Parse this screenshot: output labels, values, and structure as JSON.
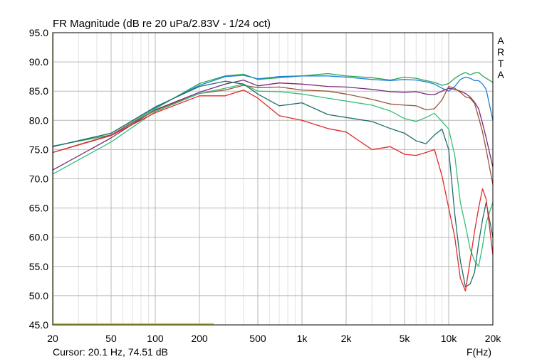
{
  "chart_data": {
    "type": "line",
    "title": "FR Magnitude (dB re 20 uPa/2.83V - 1/24 oct)",
    "xlabel": "F(Hz)",
    "ylabel": "",
    "x_scale": "log",
    "xlim": [
      20,
      20000
    ],
    "ylim": [
      45,
      95
    ],
    "grid": true,
    "side_label": [
      "A",
      "R",
      "T",
      "A"
    ],
    "cursor_readout": "Cursor: 20.1 Hz, 74.51 dB",
    "x_ticks": [
      {
        "value": 20,
        "label": "20"
      },
      {
        "value": 50,
        "label": "50"
      },
      {
        "value": 100,
        "label": "100"
      },
      {
        "value": 200,
        "label": "200"
      },
      {
        "value": 500,
        "label": "500"
      },
      {
        "value": 1000,
        "label": "1k"
      },
      {
        "value": 2000,
        "label": "2k"
      },
      {
        "value": 5000,
        "label": "5k"
      },
      {
        "value": 10000,
        "label": "10k"
      },
      {
        "value": 20000,
        "label": "20k"
      }
    ],
    "y_ticks": [
      {
        "value": 95,
        "label": "95.0"
      },
      {
        "value": 90,
        "label": "90.0"
      },
      {
        "value": 85,
        "label": "85.0"
      },
      {
        "value": 80,
        "label": "80.0"
      },
      {
        "value": 75,
        "label": "75.0"
      },
      {
        "value": 70,
        "label": "70.0"
      },
      {
        "value": 65,
        "label": "65.0"
      },
      {
        "value": 60,
        "label": "60.0"
      },
      {
        "value": 55,
        "label": "55.0"
      },
      {
        "value": 50,
        "label": "50.0"
      },
      {
        "value": 45,
        "label": "45.0"
      }
    ],
    "x_minor_ticks": [
      30,
      40,
      60,
      70,
      80,
      90,
      300,
      400,
      600,
      700,
      800,
      900,
      3000,
      4000,
      6000,
      7000,
      8000,
      9000
    ],
    "baseline_marker": {
      "color": "#d4d42a",
      "x": [
        20,
        250
      ],
      "y": 45.2
    },
    "series": [
      {
        "color": "#2aa55a",
        "x": [
          20,
          50,
          100,
          200,
          300,
          400,
          500,
          700,
          1000,
          1500,
          2000,
          3000,
          4000,
          5000,
          6000,
          7000,
          8000,
          9000,
          10000,
          11000,
          12000,
          13000,
          14000,
          15000,
          16000,
          17000,
          18000,
          20000
        ],
        "y": [
          75.6,
          77.5,
          82.0,
          86.3,
          87.6,
          87.9,
          87.0,
          87.3,
          87.6,
          88.0,
          87.6,
          87.3,
          86.9,
          87.4,
          87.2,
          86.8,
          86.5,
          86.0,
          86.3,
          87.2,
          87.8,
          88.2,
          87.8,
          88.1,
          88.2,
          87.6,
          87.2,
          86.5
        ]
      },
      {
        "color": "#1f7fd6",
        "x": [
          20,
          50,
          100,
          200,
          300,
          400,
          500,
          700,
          1000,
          1500,
          2000,
          3000,
          4000,
          5000,
          6000,
          7000,
          8000,
          9000,
          10000,
          11000,
          12000,
          13000,
          14000,
          15000,
          16000,
          17000,
          18000,
          20000
        ],
        "y": [
          75.5,
          77.8,
          82.2,
          86.0,
          87.5,
          87.7,
          87.1,
          87.5,
          87.6,
          87.6,
          87.4,
          87.0,
          86.8,
          87.0,
          86.9,
          86.6,
          86.2,
          85.5,
          85.0,
          85.8,
          87.0,
          87.4,
          87.2,
          86.8,
          86.8,
          86.2,
          85.3,
          80.0
        ]
      },
      {
        "color": "#7a2a7a",
        "x": [
          20,
          50,
          100,
          200,
          300,
          400,
          500,
          700,
          1000,
          1500,
          2000,
          3000,
          4000,
          5000,
          6000,
          7000,
          8000,
          9000,
          10000,
          11000,
          12000,
          13000,
          14000,
          15000,
          16000,
          17000,
          18000,
          20000
        ],
        "y": [
          71.5,
          77.0,
          81.8,
          84.8,
          86.2,
          86.9,
          85.9,
          86.4,
          86.2,
          85.8,
          85.7,
          85.3,
          84.9,
          84.8,
          84.9,
          84.5,
          84.4,
          85.0,
          85.5,
          85.3,
          85.0,
          84.6,
          84.0,
          83.1,
          82.0,
          79.5,
          77.0,
          72.0
        ]
      },
      {
        "color": "#9a5535",
        "x": [
          20,
          50,
          100,
          200,
          300,
          400,
          500,
          700,
          1000,
          1500,
          2000,
          3000,
          4000,
          5000,
          6000,
          7000,
          8000,
          9000,
          10000,
          11000,
          12000,
          13000,
          14000,
          15000,
          16000,
          17000,
          18000,
          20000
        ],
        "y": [
          74.5,
          77.5,
          81.7,
          84.6,
          85.2,
          86.0,
          85.6,
          85.7,
          85.2,
          85.0,
          84.5,
          83.6,
          82.8,
          82.6,
          82.5,
          81.8,
          82.0,
          83.5,
          85.8,
          85.5,
          84.8,
          84.0,
          83.8,
          82.9,
          80.5,
          78.0,
          75.0,
          69.0
        ]
      },
      {
        "color": "#33c07a",
        "x": [
          20,
          50,
          100,
          200,
          300,
          400,
          500,
          700,
          1000,
          1500,
          2000,
          3000,
          4000,
          5000,
          6000,
          7000,
          8000,
          9000,
          10000,
          11000,
          12000,
          13000,
          14000,
          15000,
          16000,
          17000,
          18000,
          20000
        ],
        "y": [
          70.8,
          76.3,
          81.5,
          84.6,
          85.5,
          86.2,
          85.0,
          84.9,
          84.5,
          83.8,
          83.3,
          82.6,
          81.6,
          80.3,
          79.8,
          80.5,
          81.2,
          79.8,
          78.5,
          74.0,
          66.0,
          62.0,
          58.0,
          56.0,
          55.0,
          58.5,
          62.5,
          66.0
        ]
      },
      {
        "color": "#1f6f6a",
        "x": [
          20,
          50,
          100,
          200,
          300,
          400,
          500,
          700,
          1000,
          1500,
          2000,
          3000,
          4000,
          5000,
          6000,
          7000,
          8000,
          9000,
          10000,
          11000,
          12000,
          13000,
          14000,
          15000,
          16000,
          17000,
          18000,
          20000
        ],
        "y": [
          75.5,
          77.8,
          82.3,
          85.8,
          86.7,
          86.2,
          84.5,
          82.5,
          83.0,
          81.0,
          80.5,
          79.8,
          78.6,
          77.8,
          76.5,
          76.0,
          77.5,
          78.5,
          75.0,
          64.0,
          56.0,
          51.5,
          52.0,
          54.0,
          59.0,
          63.0,
          66.0,
          60.0
        ]
      },
      {
        "color": "#e02a2a",
        "x": [
          20,
          50,
          100,
          200,
          300,
          400,
          500,
          700,
          1000,
          1500,
          2000,
          3000,
          4000,
          5000,
          6000,
          7000,
          8000,
          9000,
          10000,
          11000,
          12000,
          13000,
          14000,
          15000,
          16000,
          17000,
          18000,
          20000
        ],
        "y": [
          74.5,
          77.4,
          81.3,
          84.2,
          84.2,
          85.2,
          83.8,
          80.8,
          80.0,
          78.6,
          78.0,
          75.0,
          75.5,
          74.2,
          74.0,
          74.5,
          75.0,
          70.5,
          65.0,
          60.0,
          53.0,
          50.8,
          56.0,
          61.0,
          65.0,
          68.3,
          66.5,
          57.0
        ]
      }
    ]
  }
}
